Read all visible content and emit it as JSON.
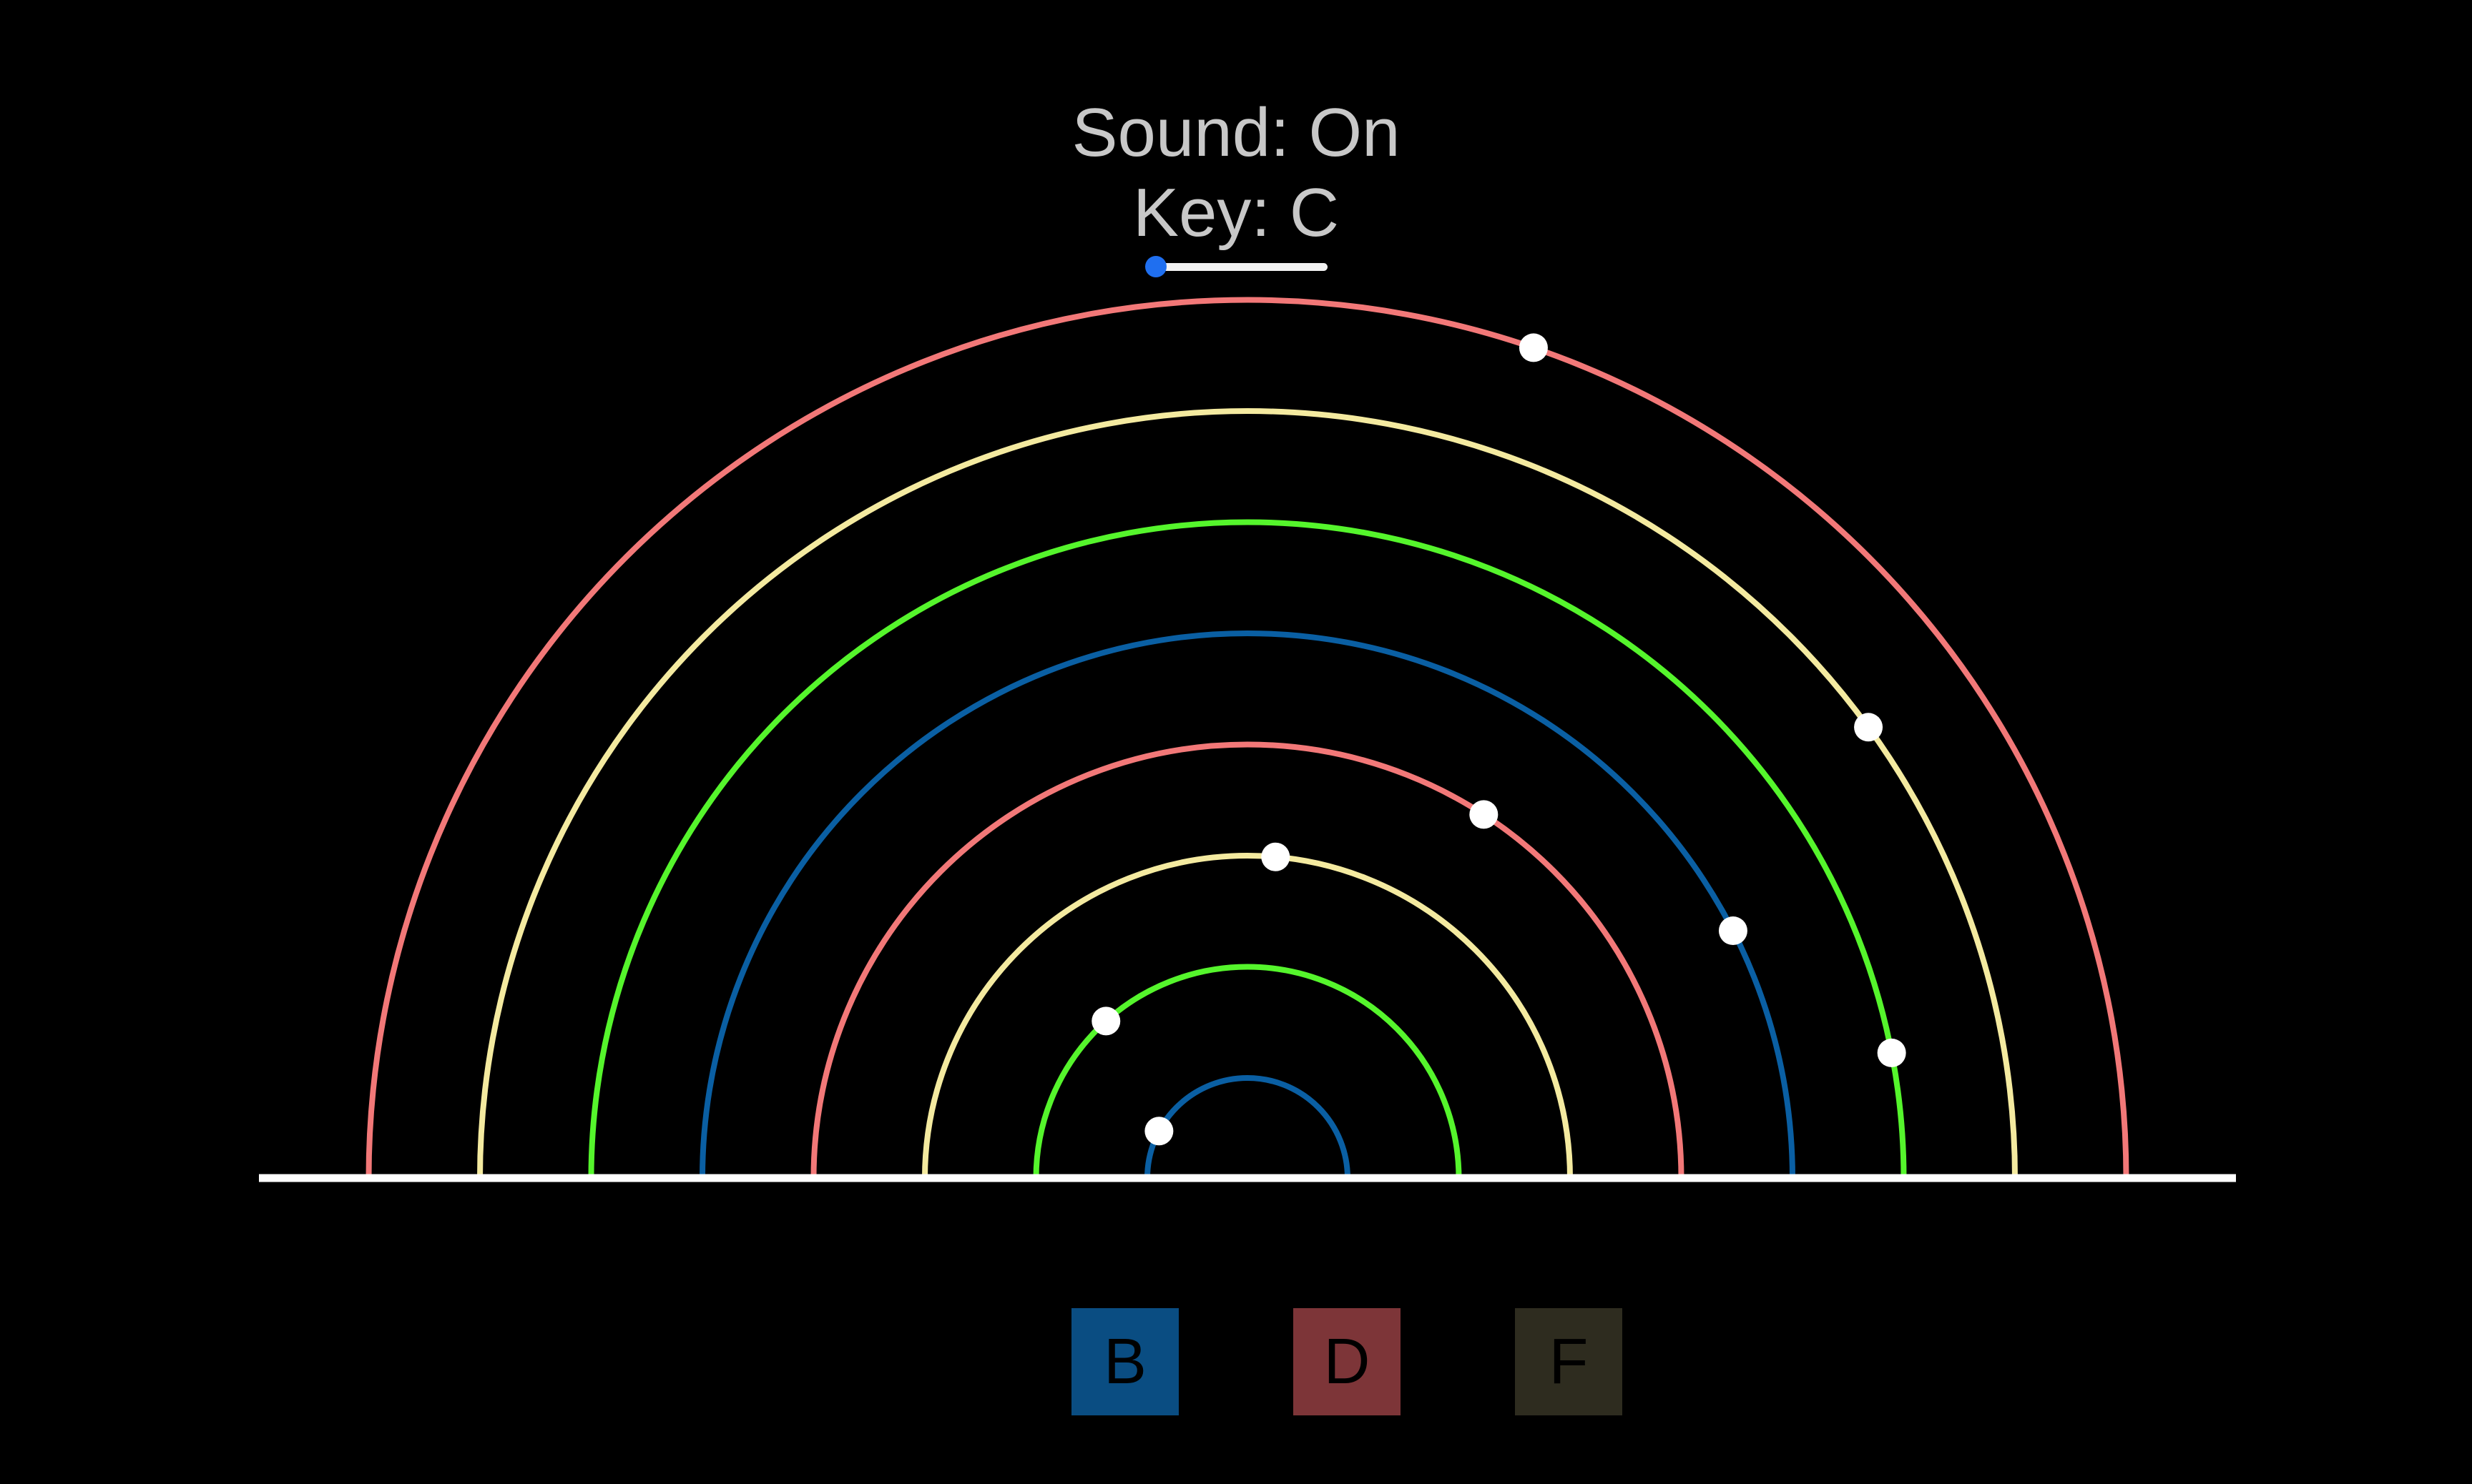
{
  "status": {
    "sound": "Sound: On",
    "key": "Key: C"
  },
  "key_slider": {
    "value_fraction": 0.0,
    "track_color": "#f2f2f2",
    "thumb_color": "#1f6ff0"
  },
  "colors": {
    "background": "#000000",
    "baseline": "#ffffff",
    "ball": "#ffffff"
  },
  "arcs": [
    {
      "color": "#0a5fa3",
      "ball_angle_deg": 152
    },
    {
      "color": "#55f52c",
      "ball_angle_deg": 132
    },
    {
      "color": "#f4eaa0",
      "ball_angle_deg": 85
    },
    {
      "color": "#f27878",
      "ball_angle_deg": 57
    },
    {
      "color": "#0a5fa3",
      "ball_angle_deg": 27
    },
    {
      "color": "#55f52c",
      "ball_angle_deg": 11
    },
    {
      "color": "#f4eaa0",
      "ball_angle_deg": 36
    },
    {
      "color": "#f27878",
      "ball_angle_deg": 71
    }
  ],
  "note_buttons": [
    {
      "label": "B",
      "color": "#0a4d82"
    },
    {
      "label": "D",
      "color": "#7d3538"
    },
    {
      "label": "F",
      "color": "#2e2c1f"
    }
  ]
}
